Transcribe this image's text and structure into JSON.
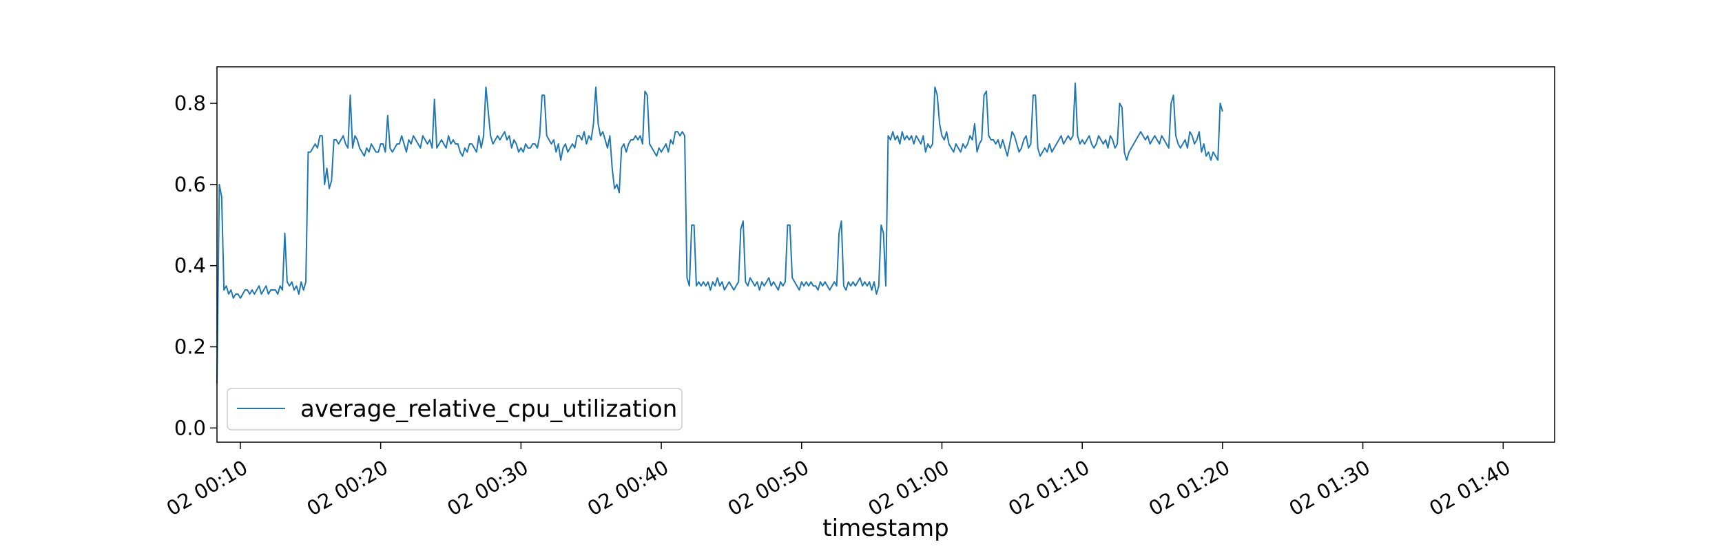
{
  "chart_data": {
    "type": "line",
    "title": "",
    "xlabel": "timestamp",
    "ylabel": "",
    "xlim": [
      "02 00:08:20",
      "02 01:43:40"
    ],
    "ylim": [
      -0.035,
      0.89
    ],
    "yticks": [
      0.0,
      0.2,
      0.4,
      0.6,
      0.8
    ],
    "ytick_labels": [
      "0.0",
      "0.2",
      "0.4",
      "0.6",
      "0.8"
    ],
    "xticks": [
      "02 00:10",
      "02 00:20",
      "02 00:30",
      "02 00:40",
      "02 00:50",
      "02 01:00",
      "02 01:10",
      "02 01:20",
      "02 01:30",
      "02 01:40"
    ],
    "grid": false,
    "legend_position": "lower-left",
    "line_color": "#1f77b4",
    "series": [
      {
        "name": "average_relative_cpu_utilization",
        "sampling": "10-second intervals starting 02 00:08:20",
        "values": [
          0.11,
          0.6,
          0.57,
          0.34,
          0.35,
          0.33,
          0.34,
          0.32,
          0.33,
          0.33,
          0.32,
          0.33,
          0.34,
          0.34,
          0.33,
          0.34,
          0.33,
          0.34,
          0.35,
          0.33,
          0.34,
          0.35,
          0.33,
          0.34,
          0.34,
          0.34,
          0.33,
          0.35,
          0.34,
          0.48,
          0.36,
          0.35,
          0.36,
          0.34,
          0.35,
          0.33,
          0.36,
          0.34,
          0.36,
          0.68,
          0.68,
          0.69,
          0.7,
          0.69,
          0.72,
          0.72,
          0.6,
          0.64,
          0.59,
          0.61,
          0.71,
          0.71,
          0.7,
          0.71,
          0.72,
          0.7,
          0.69,
          0.82,
          0.69,
          0.72,
          0.71,
          0.69,
          0.68,
          0.67,
          0.69,
          0.68,
          0.7,
          0.69,
          0.68,
          0.68,
          0.7,
          0.7,
          0.68,
          0.77,
          0.69,
          0.68,
          0.69,
          0.7,
          0.7,
          0.72,
          0.7,
          0.68,
          0.71,
          0.7,
          0.72,
          0.71,
          0.7,
          0.69,
          0.72,
          0.71,
          0.7,
          0.71,
          0.69,
          0.81,
          0.69,
          0.7,
          0.71,
          0.7,
          0.69,
          0.72,
          0.7,
          0.71,
          0.7,
          0.7,
          0.68,
          0.67,
          0.69,
          0.68,
          0.7,
          0.7,
          0.69,
          0.68,
          0.72,
          0.69,
          0.72,
          0.84,
          0.78,
          0.72,
          0.7,
          0.71,
          0.72,
          0.71,
          0.72,
          0.73,
          0.71,
          0.72,
          0.69,
          0.71,
          0.7,
          0.68,
          0.69,
          0.68,
          0.7,
          0.69,
          0.69,
          0.7,
          0.7,
          0.69,
          0.72,
          0.82,
          0.82,
          0.72,
          0.71,
          0.7,
          0.71,
          0.68,
          0.7,
          0.66,
          0.69,
          0.7,
          0.68,
          0.69,
          0.7,
          0.69,
          0.72,
          0.72,
          0.71,
          0.73,
          0.7,
          0.72,
          0.71,
          0.75,
          0.84,
          0.75,
          0.72,
          0.73,
          0.71,
          0.69,
          0.72,
          0.64,
          0.59,
          0.6,
          0.58,
          0.69,
          0.7,
          0.68,
          0.7,
          0.71,
          0.71,
          0.72,
          0.71,
          0.72,
          0.7,
          0.83,
          0.82,
          0.7,
          0.69,
          0.68,
          0.67,
          0.69,
          0.68,
          0.69,
          0.7,
          0.68,
          0.71,
          0.7,
          0.73,
          0.73,
          0.72,
          0.73,
          0.72,
          0.37,
          0.35,
          0.5,
          0.5,
          0.35,
          0.36,
          0.35,
          0.36,
          0.35,
          0.36,
          0.34,
          0.36,
          0.35,
          0.37,
          0.35,
          0.36,
          0.34,
          0.35,
          0.36,
          0.35,
          0.34,
          0.35,
          0.36,
          0.49,
          0.51,
          0.36,
          0.35,
          0.37,
          0.36,
          0.35,
          0.36,
          0.34,
          0.36,
          0.35,
          0.36,
          0.37,
          0.35,
          0.36,
          0.35,
          0.34,
          0.36,
          0.35,
          0.36,
          0.5,
          0.5,
          0.37,
          0.36,
          0.35,
          0.34,
          0.36,
          0.35,
          0.36,
          0.35,
          0.36,
          0.35,
          0.35,
          0.34,
          0.36,
          0.35,
          0.36,
          0.35,
          0.34,
          0.35,
          0.36,
          0.35,
          0.48,
          0.51,
          0.35,
          0.34,
          0.36,
          0.35,
          0.36,
          0.35,
          0.36,
          0.37,
          0.35,
          0.36,
          0.35,
          0.36,
          0.34,
          0.36,
          0.33,
          0.35,
          0.5,
          0.48,
          0.35,
          0.72,
          0.71,
          0.73,
          0.71,
          0.72,
          0.7,
          0.73,
          0.71,
          0.72,
          0.71,
          0.72,
          0.7,
          0.72,
          0.71,
          0.7,
          0.72,
          0.68,
          0.7,
          0.69,
          0.7,
          0.84,
          0.82,
          0.75,
          0.72,
          0.71,
          0.73,
          0.7,
          0.69,
          0.68,
          0.7,
          0.69,
          0.68,
          0.7,
          0.69,
          0.7,
          0.72,
          0.71,
          0.75,
          0.68,
          0.7,
          0.71,
          0.82,
          0.83,
          0.72,
          0.71,
          0.71,
          0.7,
          0.71,
          0.69,
          0.71,
          0.69,
          0.67,
          0.7,
          0.73,
          0.72,
          0.7,
          0.68,
          0.69,
          0.71,
          0.72,
          0.69,
          0.7,
          0.82,
          0.82,
          0.69,
          0.67,
          0.68,
          0.69,
          0.68,
          0.7,
          0.68,
          0.69,
          0.7,
          0.71,
          0.72,
          0.7,
          0.71,
          0.72,
          0.71,
          0.72,
          0.85,
          0.72,
          0.7,
          0.71,
          0.7,
          0.71,
          0.72,
          0.7,
          0.69,
          0.7,
          0.72,
          0.71,
          0.7,
          0.71,
          0.69,
          0.72,
          0.71,
          0.69,
          0.7,
          0.8,
          0.79,
          0.68,
          0.66,
          0.68,
          0.69,
          0.7,
          0.71,
          0.72,
          0.73,
          0.72,
          0.71,
          0.72,
          0.7,
          0.71,
          0.72,
          0.71,
          0.7,
          0.72,
          0.71,
          0.7,
          0.69,
          0.8,
          0.82,
          0.72,
          0.7,
          0.69,
          0.7,
          0.71,
          0.69,
          0.73,
          0.72,
          0.7,
          0.71,
          0.73,
          0.68,
          0.7,
          0.67,
          0.68,
          0.66,
          0.68,
          0.67,
          0.66,
          0.8,
          0.78
        ]
      }
    ]
  }
}
